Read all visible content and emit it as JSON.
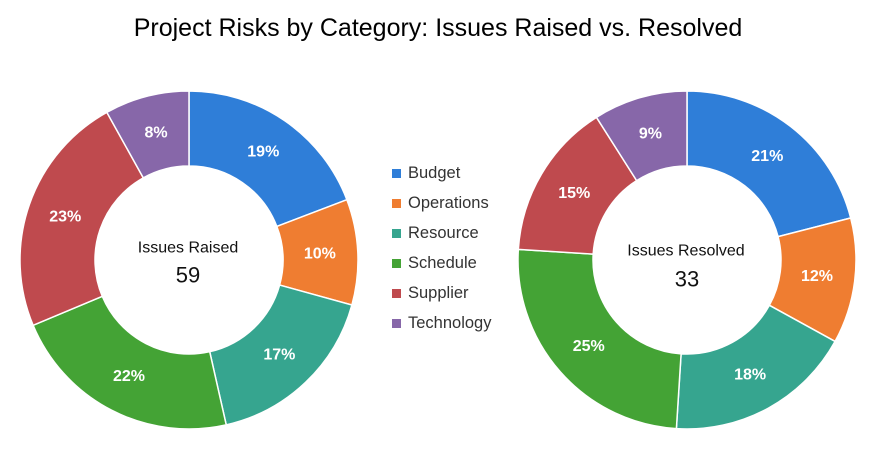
{
  "chart_data": [
    {
      "type": "pie",
      "title": "Project Risks by Category: Issues Raised vs. Resolved",
      "center_label": "Issues Raised",
      "total": "59",
      "categories": [
        "Budget",
        "Operations",
        "Resource",
        "Schedule",
        "Supplier",
        "Technology"
      ],
      "values": [
        19,
        10,
        17,
        22,
        23,
        8
      ],
      "labels": [
        "19%",
        "10%",
        "17%",
        "22%",
        "23%",
        "8%"
      ]
    },
    {
      "type": "pie",
      "center_label": "Issues Resolved",
      "total": "33",
      "categories": [
        "Budget",
        "Operations",
        "Resource",
        "Schedule",
        "Supplier",
        "Technology"
      ],
      "values": [
        21,
        12,
        18,
        25,
        15,
        9
      ],
      "labels": [
        "21%",
        "12%",
        "18%",
        "25%",
        "15%",
        "9%"
      ]
    }
  ],
  "title": "Project Risks by Category: Issues Raised vs. Resolved",
  "legend": [
    {
      "label": "Budget",
      "color": "#2f7ed8"
    },
    {
      "label": "Operations",
      "color": "#ef7d31"
    },
    {
      "label": "Resource",
      "color": "#36a58f"
    },
    {
      "label": "Schedule",
      "color": "#44a335"
    },
    {
      "label": "Supplier",
      "color": "#bf4a4e"
    },
    {
      "label": "Technology",
      "color": "#8767a9"
    }
  ],
  "colors": [
    "#2f7ed8",
    "#ef7d31",
    "#36a58f",
    "#44a335",
    "#bf4a4e",
    "#8767a9"
  ]
}
